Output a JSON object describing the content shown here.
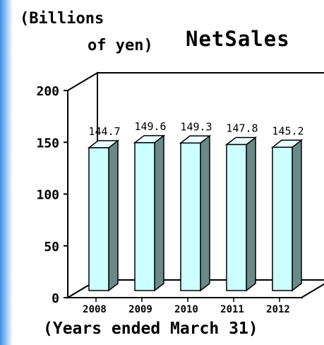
{
  "chart_data": {
    "type": "bar",
    "title": "NetSales",
    "ylabel": [
      "(Billions",
      "of yen)"
    ],
    "xlabel": "(Years ended March 31)",
    "categories": [
      "2008",
      "2009",
      "2010",
      "2011",
      "2012"
    ],
    "values": [
      144.7,
      149.6,
      149.3,
      147.8,
      145.2
    ],
    "data_labels": [
      "144.7",
      "149.6",
      "149.3",
      "147.8",
      "145.2"
    ],
    "yticks": [
      "0",
      "50",
      "100",
      "150",
      "200"
    ],
    "ylim": [
      0,
      200
    ],
    "style": "3d-box",
    "grid": false,
    "legend": "none",
    "colors": {
      "bar_front": "#ccffff",
      "bar_side": "#6a8a8a",
      "bar_top": "#e8ffff",
      "wall": "#ffffff",
      "edge": "#000000",
      "background": "#ffffff"
    }
  }
}
